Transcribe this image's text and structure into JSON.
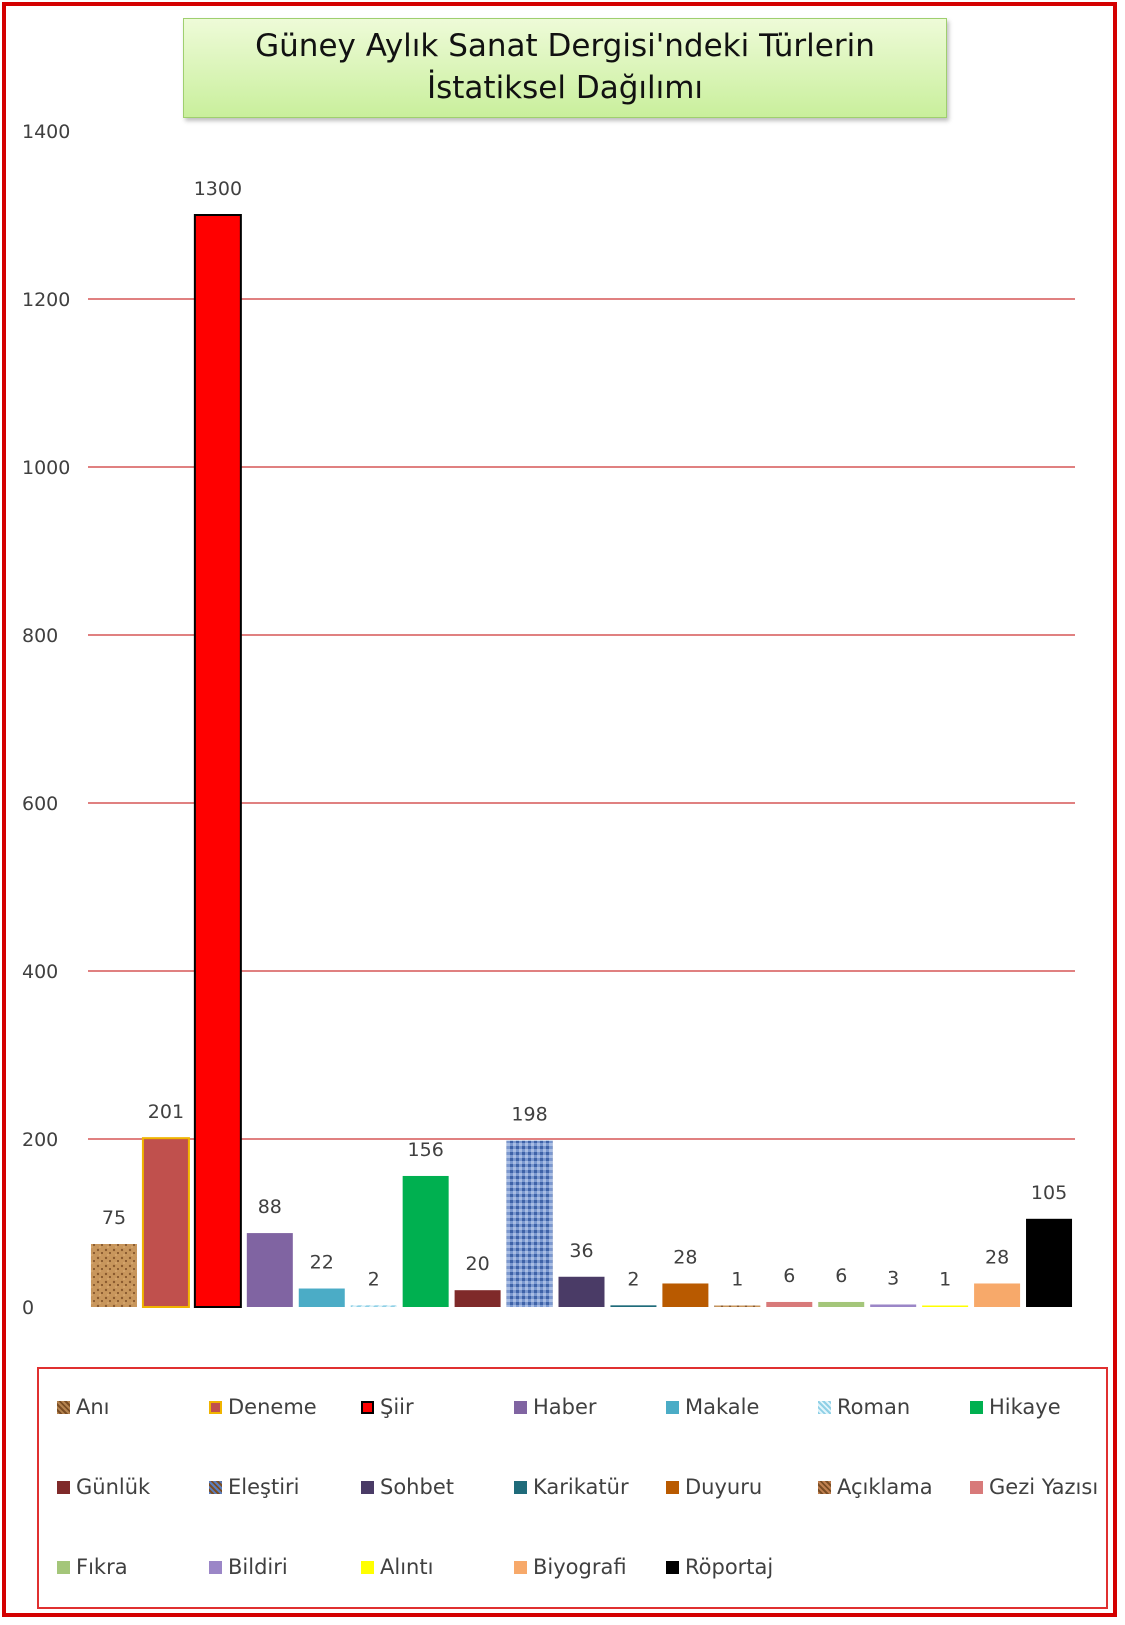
{
  "chart_data": {
    "type": "bar",
    "title": "Güney Aylık Sanat Dergisi'ndeki Türlerin İstatiksel Dağılımı",
    "ylim": [
      0,
      1400
    ],
    "yticks": [
      0,
      200,
      400,
      600,
      800,
      1000,
      1200,
      1400
    ],
    "grid": true,
    "gridline_color": "#c00000",
    "legend_position": "bottom",
    "categories": [
      "Anı",
      "Deneme",
      "Şiir",
      "Haber",
      "Makale",
      "Roman",
      "Hikaye",
      "Günlük",
      "Eleştiri",
      "Sohbet",
      "Karikatür",
      "Duyuru",
      "Açıklama",
      "Gezi Yazısı",
      "Fıkra",
      "Bildiri",
      "Alıntı",
      "Biyografi",
      "Röportaj"
    ],
    "values": [
      75,
      201,
      1300,
      88,
      22,
      2,
      156,
      20,
      198,
      36,
      2,
      28,
      1,
      6,
      6,
      3,
      1,
      28,
      105
    ],
    "data_labels": [
      "75",
      "201",
      "1300",
      "88",
      "22",
      "2",
      "156",
      "20",
      "198",
      "36",
      "2",
      "28",
      "1",
      "6",
      "6",
      "3",
      "1",
      "28",
      "105"
    ],
    "colors": [
      "#b5834f",
      "#c0504d",
      "#ff0000",
      "#8064a2",
      "#4bacc6",
      "#b7e3f0",
      "#00b050",
      "#7f2a2a",
      "#5b7fc0",
      "#4a3b66",
      "#1f6b7a",
      "#b95a00",
      "#c08050",
      "#d87a7a",
      "#a4c67a",
      "#9b86c7",
      "#ffff00",
      "#f7a96a",
      "#000000"
    ],
    "borders": [
      "none",
      "#f0b400",
      "#000000",
      "none",
      "none",
      "none",
      "none",
      "none",
      "none",
      "none",
      "none",
      "none",
      "none",
      "none",
      "none",
      "none",
      "none",
      "none",
      "none"
    ],
    "patterns": [
      "texture",
      "solid",
      "solid",
      "solid",
      "solid",
      "hatch",
      "solid",
      "solid",
      "texture",
      "solid",
      "solid",
      "solid",
      "texture",
      "solid",
      "solid",
      "solid",
      "solid",
      "solid",
      "solid"
    ]
  }
}
